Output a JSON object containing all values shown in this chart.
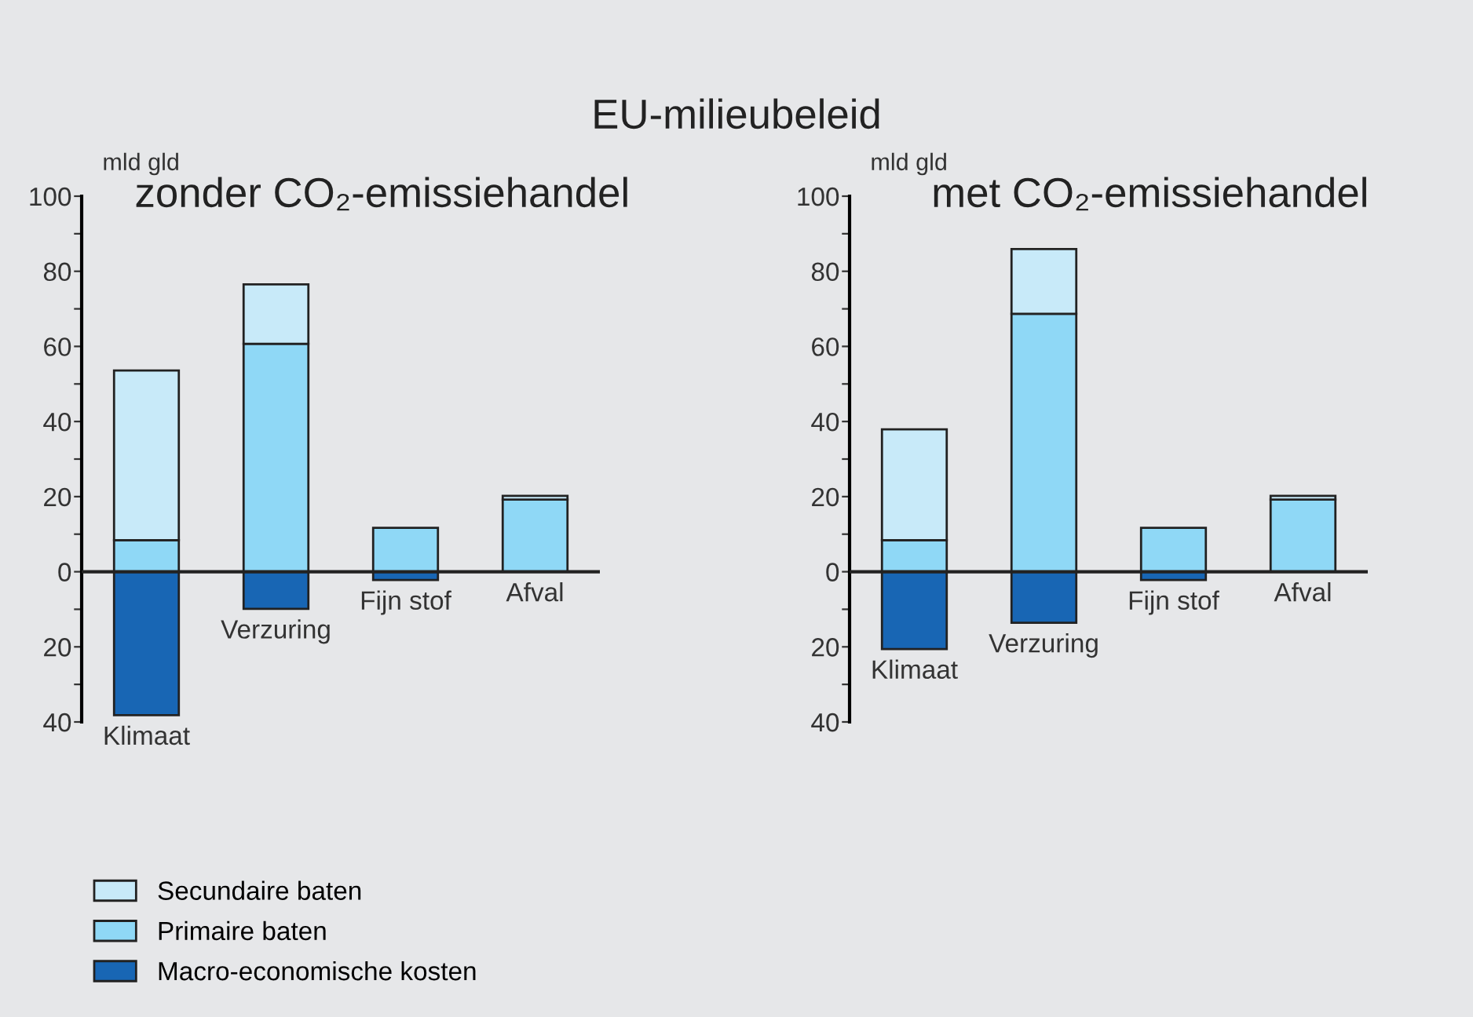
{
  "chart_data": [
    {
      "type": "bar",
      "stacked": true,
      "title": "EU-milieubeleid",
      "subtitle": "zonder CO₂-emissiehandel",
      "ylabel": "mld gld",
      "categories": [
        "Klimaat",
        "Verzuring",
        "Fijn stof",
        "Afval"
      ],
      "series": [
        {
          "name": "Macro-economische kosten",
          "color": "#1866b4",
          "values": [
            -38.2,
            -9.9,
            -2.2,
            null
          ]
        },
        {
          "name": "Primaire baten",
          "color": "#8fd8f6",
          "values": [
            8.4,
            60.7,
            11.7,
            19.2
          ]
        },
        {
          "name": "Secundaire baten",
          "color": "#c8eaf9",
          "values": [
            45.2,
            15.8,
            null,
            1.0
          ]
        }
      ],
      "ylim": [
        -40,
        100
      ],
      "yticks": [
        {
          "value": -40,
          "label": "40"
        },
        {
          "value": -30,
          "label": null
        },
        {
          "value": -20,
          "label": "20"
        },
        {
          "value": -10,
          "label": null
        },
        0,
        {
          "value": 10,
          "label": null
        },
        20,
        {
          "value": 30,
          "label": null
        },
        40,
        {
          "value": 50,
          "label": null
        },
        60,
        {
          "value": 70,
          "label": null
        },
        80,
        {
          "value": 90,
          "label": null
        },
        100
      ],
      "legend": "bottom left"
    },
    {
      "type": "bar",
      "stacked": true,
      "subtitle": "met CO₂-emissiehandel",
      "ylabel": "mld gld",
      "categories": [
        "Klimaat",
        "Verzuring",
        "Fijn stof",
        "Afval"
      ],
      "series": [
        {
          "color": "#1866b4",
          "values": [
            -20.6,
            -13.6,
            -2.2,
            null
          ]
        },
        {
          "color": "#8fd8f6",
          "values": [
            8.4,
            68.7,
            11.7,
            19.2
          ]
        },
        {
          "color": "#c8eaf9",
          "values": [
            29.5,
            17.2,
            null,
            1.0
          ]
        }
      ],
      "ylim": [
        -40,
        100
      ],
      "yticks": [
        {
          "value": -40,
          "label": "40"
        },
        {
          "value": -30,
          "label": null
        },
        {
          "value": -20,
          "label": "20"
        },
        {
          "value": -10,
          "label": null
        },
        0,
        {
          "value": 10,
          "label": null
        },
        20,
        {
          "value": 30,
          "label": null
        },
        40,
        {
          "value": 50,
          "label": null
        },
        60,
        {
          "value": 70,
          "label": null
        },
        80,
        {
          "value": 90,
          "label": null
        },
        100
      ]
    }
  ]
}
